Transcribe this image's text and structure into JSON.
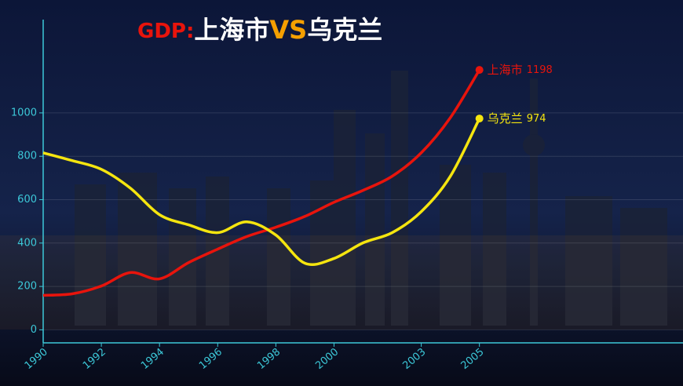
{
  "chart_data": {
    "type": "line",
    "title": [
      "GDP:",
      "上海市",
      "VS",
      "乌克兰"
    ],
    "title_colors": [
      "#e8140c",
      "#ffffff",
      "#f5a000",
      "#ffffff"
    ],
    "x": [
      1990,
      1991,
      1992,
      1993,
      1994,
      1995,
      1996,
      1997,
      1998,
      1999,
      2000,
      2001,
      2002,
      2003,
      2004,
      2005
    ],
    "xlim": [
      1990,
      2012
    ],
    "xticks": [
      1990,
      1992,
      1994,
      1996,
      1998,
      2000,
      2003,
      2005
    ],
    "ylim": [
      -60,
      1430
    ],
    "yticks": [
      0,
      200,
      400,
      600,
      800,
      1000
    ],
    "grid": true,
    "series": [
      {
        "name": "上海市",
        "color": "#e8140c",
        "values": [
          159,
          166,
          202,
          264,
          235,
          310,
          372,
          430,
          473,
          523,
          588,
          643,
          708,
          816,
          978,
          1198
        ]
      },
      {
        "name": "乌克兰",
        "color": "#f5e50f",
        "values": [
          816,
          780,
          740,
          653,
          531,
          484,
          448,
          498,
          437,
          307,
          329,
          401,
          448,
          545,
          708,
          974
        ]
      }
    ]
  }
}
